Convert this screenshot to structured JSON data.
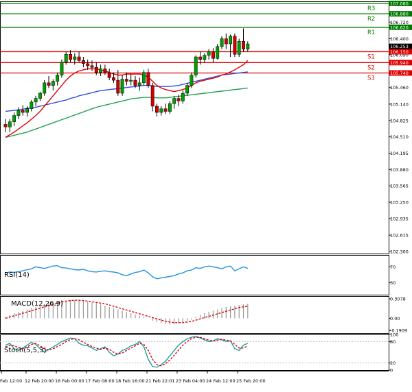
{
  "chart_data": {
    "type": "candlestick",
    "main": {
      "ylim": [
        102.3,
        107.08
      ],
      "price_ticks": [
        107.08,
        106.72,
        106.4,
        106.09,
        105.46,
        105.14,
        104.825,
        104.51,
        104.195,
        103.88,
        103.565,
        103.25,
        102.935,
        102.615,
        102.3
      ],
      "price_labels": [
        "107.080",
        "106.720",
        "106.400",
        "106.090",
        "105.460",
        "105.140",
        "104.825",
        "104.510",
        "104.195",
        "103.880",
        "103.565",
        "103.250",
        "102.935",
        "102.615",
        "102.300"
      ],
      "current_price": 106.253,
      "current_label": "106.253",
      "levels": [
        {
          "name": "R3",
          "value": 107.08,
          "label": "107.080",
          "color": "#007a00"
        },
        {
          "name": "R2",
          "value": 106.88,
          "label": "106.880",
          "color": "#007a00"
        },
        {
          "name": "R1",
          "value": 106.62,
          "label": "106.620",
          "color": "#007a00"
        },
        {
          "name": "S1",
          "value": 106.15,
          "label": "106.150",
          "color": "#e00000"
        },
        {
          "name": "S2",
          "value": 105.94,
          "label": "105.940",
          "color": "#e00000"
        },
        {
          "name": "S3",
          "value": 105.74,
          "label": "105.740",
          "color": "#e00000"
        }
      ],
      "candles": [
        [
          104.75,
          104.85,
          104.6,
          104.7
        ],
        [
          104.7,
          104.85,
          104.6,
          104.8
        ],
        [
          104.8,
          104.98,
          104.72,
          104.92
        ],
        [
          104.92,
          105.08,
          104.85,
          105.02
        ],
        [
          105.02,
          105.12,
          104.92,
          104.98
        ],
        [
          104.98,
          105.1,
          104.9,
          105.05
        ],
        [
          105.05,
          105.22,
          105.0,
          105.18
        ],
        [
          105.18,
          105.3,
          105.1,
          105.25
        ],
        [
          105.25,
          105.38,
          105.2,
          105.35
        ],
        [
          105.35,
          105.6,
          105.3,
          105.55
        ],
        [
          105.55,
          105.68,
          105.45,
          105.5
        ],
        [
          105.5,
          105.62,
          105.4,
          105.58
        ],
        [
          105.58,
          105.75,
          105.5,
          105.7
        ],
        [
          105.7,
          106.0,
          105.65,
          105.95
        ],
        [
          105.95,
          106.15,
          105.9,
          106.1
        ],
        [
          106.1,
          106.18,
          105.95,
          106.0
        ],
        [
          106.0,
          106.12,
          105.9,
          106.05
        ],
        [
          106.05,
          106.15,
          105.95,
          105.98
        ],
        [
          105.98,
          106.05,
          105.85,
          105.92
        ],
        [
          105.92,
          106.0,
          105.8,
          105.88
        ],
        [
          105.88,
          105.98,
          105.78,
          105.85
        ],
        [
          105.85,
          105.95,
          105.7,
          105.75
        ],
        [
          105.75,
          105.9,
          105.68,
          105.82
        ],
        [
          105.82,
          105.9,
          105.7,
          105.74
        ],
        [
          105.74,
          105.82,
          105.6,
          105.65
        ],
        [
          105.65,
          105.75,
          105.55,
          105.6
        ],
        [
          105.6,
          105.8,
          105.3,
          105.35
        ],
        [
          105.35,
          105.7,
          105.3,
          105.62
        ],
        [
          105.62,
          105.75,
          105.5,
          105.58
        ],
        [
          105.58,
          105.72,
          105.5,
          105.6
        ],
        [
          105.6,
          105.68,
          105.45,
          105.5
        ],
        [
          105.5,
          105.65,
          105.4,
          105.55
        ],
        [
          105.55,
          105.8,
          105.5,
          105.75
        ],
        [
          105.75,
          105.82,
          105.45,
          105.5
        ],
        [
          105.5,
          105.55,
          105.0,
          105.1
        ],
        [
          105.1,
          105.15,
          104.9,
          104.98
        ],
        [
          104.98,
          105.1,
          104.92,
          105.05
        ],
        [
          105.05,
          105.15,
          104.95,
          105.0
        ],
        [
          105.0,
          105.2,
          104.95,
          105.15
        ],
        [
          105.15,
          105.3,
          105.05,
          105.25
        ],
        [
          105.25,
          105.32,
          105.1,
          105.2
        ],
        [
          105.2,
          105.4,
          105.15,
          105.35
        ],
        [
          105.35,
          105.55,
          105.3,
          105.5
        ],
        [
          105.5,
          105.75,
          105.45,
          105.7
        ],
        [
          105.7,
          106.08,
          105.65,
          106.05
        ],
        [
          106.05,
          106.15,
          105.9,
          106.0
        ],
        [
          106.0,
          106.12,
          105.95,
          106.08
        ],
        [
          106.08,
          106.2,
          106.0,
          106.15
        ],
        [
          106.15,
          106.22,
          105.95,
          106.02
        ],
        [
          106.02,
          106.3,
          106.0,
          106.25
        ],
        [
          106.25,
          106.45,
          106.2,
          106.4
        ],
        [
          106.4,
          106.5,
          106.2,
          106.3
        ],
        [
          106.3,
          106.48,
          106.05,
          106.45
        ],
        [
          106.45,
          106.5,
          106.05,
          106.1
        ],
        [
          106.1,
          106.4,
          106.05,
          106.35
        ],
        [
          106.35,
          106.6,
          106.15,
          106.2
        ],
        [
          106.2,
          106.35,
          106.15,
          106.3
        ]
      ],
      "ma_fast": [
        104.5,
        104.55,
        104.6,
        104.66,
        104.72,
        104.78,
        104.85,
        104.92,
        105.0,
        105.1,
        105.2,
        105.3,
        105.4,
        105.5,
        105.6,
        105.68,
        105.74,
        105.78,
        105.8,
        105.82,
        105.82,
        105.82,
        105.8,
        105.78,
        105.75,
        105.72,
        105.7,
        105.7,
        105.72,
        105.72,
        105.72,
        105.72,
        105.7,
        105.66,
        105.58,
        105.5,
        105.45,
        105.42,
        105.4,
        105.38,
        105.4,
        105.42,
        105.45,
        105.5,
        105.55,
        105.58,
        105.6,
        105.62,
        105.64,
        105.66,
        105.7,
        105.72,
        105.76,
        105.8,
        105.85,
        105.9,
        105.98
      ],
      "ma_mid": [
        105.0,
        105.01,
        105.02,
        105.03,
        105.04,
        105.06,
        105.07,
        105.08,
        105.1,
        105.12,
        105.14,
        105.16,
        105.18,
        105.2,
        105.22,
        105.25,
        105.27,
        105.3,
        105.32,
        105.34,
        105.36,
        105.38,
        105.4,
        105.41,
        105.42,
        105.43,
        105.44,
        105.45,
        105.46,
        105.47,
        105.48,
        105.49,
        105.5,
        105.5,
        105.49,
        105.48,
        105.48,
        105.48,
        105.48,
        105.49,
        105.5,
        105.52,
        105.54,
        105.56,
        105.58,
        105.6,
        105.62,
        105.64,
        105.66,
        105.68,
        105.7,
        105.71,
        105.72,
        105.73,
        105.74,
        105.75,
        105.76
      ],
      "ma_slow": [
        104.5,
        104.52,
        104.54,
        104.56,
        104.58,
        104.6,
        104.63,
        104.66,
        104.69,
        104.72,
        104.75,
        104.78,
        104.81,
        104.84,
        104.87,
        104.9,
        104.93,
        104.96,
        104.99,
        105.02,
        105.05,
        105.08,
        105.1,
        105.12,
        105.14,
        105.16,
        105.18,
        105.2,
        105.22,
        105.24,
        105.25,
        105.26,
        105.27,
        105.27,
        105.27,
        105.26,
        105.26,
        105.26,
        105.27,
        105.28,
        105.29,
        105.3,
        105.31,
        105.32,
        105.33,
        105.34,
        105.35,
        105.36,
        105.37,
        105.38,
        105.39,
        105.4,
        105.41,
        105.42,
        105.43,
        105.44,
        105.45
      ],
      "colors": {
        "bull": "#00a000",
        "bear": "#d00000",
        "ma_fast": "#e00000",
        "ma_mid": "#3050e0",
        "ma_slow": "#20a050"
      }
    },
    "x_labels": [
      "Feb 12:00",
      "12 Feb 20:00",
      "16 Feb 00:00",
      "17 Feb 08:00",
      "18 Feb 16:00",
      "21 Feb 22:01",
      "23 Feb 04:00",
      "24 Feb 12:00",
      "25 Feb 20:00"
    ],
    "rsi": {
      "label": "RSI(14)",
      "ticks": [
        70,
        30
      ],
      "ylim": [
        0,
        100
      ],
      "values": [
        55,
        57,
        56,
        58,
        60,
        63,
        65,
        70,
        68,
        66,
        69,
        72,
        73,
        68,
        67,
        65,
        63,
        62,
        64,
        60,
        58,
        57,
        59,
        60,
        58,
        57,
        55,
        50,
        48,
        52,
        56,
        58,
        62,
        55,
        45,
        40,
        42,
        44,
        46,
        48,
        52,
        55,
        60,
        62,
        68,
        66,
        70,
        72,
        70,
        68,
        65,
        70,
        72,
        60,
        65,
        70,
        66
      ]
    },
    "macd": {
      "label": "MACD(12,26,9)",
      "ticks": [
        0.3078,
        0,
        -0.1909
      ],
      "tick_labels": [
        "0.3078",
        "0.00",
        "-0.1909"
      ],
      "ylim": [
        -0.1909,
        0.3078
      ],
      "hist": [
        0.02,
        0.05,
        0.08,
        0.1,
        0.12,
        0.14,
        0.16,
        0.18,
        0.2,
        0.22,
        0.24,
        0.26,
        0.27,
        0.28,
        0.28,
        0.29,
        0.29,
        0.28,
        0.27,
        0.26,
        0.25,
        0.24,
        0.22,
        0.2,
        0.18,
        0.16,
        0.14,
        0.12,
        0.1,
        0.08,
        0.06,
        0.04,
        0.02,
        0.0,
        -0.04,
        -0.06,
        -0.08,
        -0.09,
        -0.1,
        -0.1,
        -0.08,
        -0.06,
        -0.04,
        -0.02,
        0.02,
        0.05,
        0.08,
        0.1,
        0.12,
        0.14,
        0.16,
        0.18,
        0.19,
        0.2,
        0.21,
        0.22,
        0.23
      ],
      "signal": [
        0.0,
        0.02,
        0.04,
        0.06,
        0.08,
        0.1,
        0.12,
        0.14,
        0.16,
        0.18,
        0.2,
        0.22,
        0.24,
        0.26,
        0.27,
        0.28,
        0.285,
        0.285,
        0.28,
        0.27,
        0.26,
        0.25,
        0.24,
        0.23,
        0.21,
        0.19,
        0.17,
        0.15,
        0.13,
        0.11,
        0.09,
        0.07,
        0.05,
        0.03,
        0.01,
        -0.01,
        -0.03,
        -0.05,
        -0.06,
        -0.07,
        -0.07,
        -0.07,
        -0.06,
        -0.05,
        -0.03,
        -0.01,
        0.01,
        0.03,
        0.05,
        0.07,
        0.09,
        0.11,
        0.13,
        0.15,
        0.17,
        0.18,
        0.19
      ]
    },
    "stoch": {
      "label": "Stoch(5,5,3)",
      "ticks": [
        100,
        80,
        20,
        0
      ],
      "ylim": [
        0,
        100
      ],
      "k": [
        70,
        75,
        60,
        55,
        62,
        70,
        78,
        72,
        60,
        50,
        58,
        65,
        72,
        80,
        85,
        90,
        88,
        75,
        70,
        68,
        62,
        55,
        60,
        65,
        50,
        40,
        45,
        55,
        60,
        68,
        72,
        80,
        65,
        30,
        10,
        8,
        15,
        25,
        40,
        55,
        70,
        80,
        88,
        92,
        95,
        90,
        85,
        80,
        82,
        88,
        85,
        80,
        82,
        60,
        55,
        70,
        75
      ],
      "d": [
        65,
        70,
        68,
        63,
        60,
        65,
        72,
        75,
        68,
        60,
        56,
        60,
        66,
        72,
        80,
        86,
        88,
        85,
        78,
        72,
        66,
        62,
        58,
        62,
        58,
        50,
        45,
        48,
        55,
        62,
        68,
        75,
        72,
        55,
        30,
        15,
        12,
        18,
        28,
        42,
        56,
        70,
        80,
        88,
        92,
        92,
        88,
        84,
        82,
        84,
        86,
        84,
        82,
        72,
        62,
        62,
        68
      ]
    },
    "colors": {
      "grid_border": "#000000",
      "label_box": "#000000",
      "label_text": "#ffffff",
      "current_box": "#000000",
      "s_levels": "#e00000",
      "r_levels": "#007a00"
    }
  }
}
